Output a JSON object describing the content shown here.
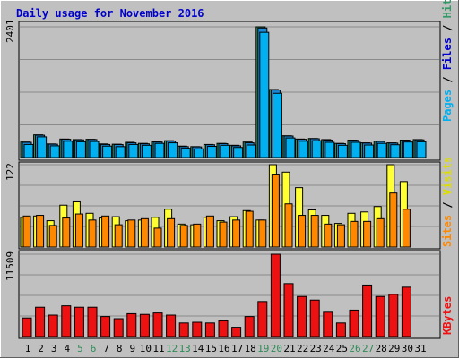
{
  "title": "Daily usage for November 2016",
  "colors": {
    "title": "#0000cc",
    "pages": "#00b0f0",
    "files": "#1a8ad8",
    "hits": "#339966",
    "visits": "#ffff33",
    "sites": "#ff8800",
    "kbytes": "#ee1111",
    "weekend": "#2e8b57",
    "weekday": "#000000",
    "grid": "#8a8a8a",
    "panel_bg": "#c0c0c0"
  },
  "side_labels": {
    "top": [
      {
        "text": "Pages",
        "color": "#00b0f0"
      },
      {
        "text": " / ",
        "color": "#000000"
      },
      {
        "text": "Files",
        "color": "#0000cc"
      },
      {
        "text": " / ",
        "color": "#000000"
      },
      {
        "text": "Hits",
        "color": "#339966"
      }
    ],
    "middle": [
      {
        "text": "Sites",
        "color": "#ff8800"
      },
      {
        "text": " / ",
        "color": "#000000"
      },
      {
        "text": "Visits",
        "color": "#dddd00"
      }
    ],
    "bottom": [
      {
        "text": "KBytes",
        "color": "#ee1111"
      }
    ]
  },
  "chart_data": [
    {
      "type": "bar",
      "panel": "hits-files-pages",
      "ymax_label": "2401",
      "ylim": [
        0,
        2401
      ],
      "categories": [
        "1",
        "2",
        "3",
        "4",
        "5",
        "6",
        "7",
        "8",
        "9",
        "10",
        "11",
        "12",
        "13",
        "14",
        "15",
        "16",
        "17",
        "18",
        "19",
        "20",
        "21",
        "22",
        "23",
        "24",
        "25",
        "26",
        "27",
        "28",
        "29",
        "30",
        "31"
      ],
      "weekend_days": [
        "5",
        "6",
        "12",
        "13",
        "19",
        "20",
        "26",
        "27"
      ],
      "series": [
        {
          "name": "Hits",
          "values": [
            285,
            417,
            250,
            340,
            330,
            335,
            250,
            245,
            280,
            260,
            290,
            310,
            210,
            200,
            240,
            260,
            225,
            285,
            2401,
            1250,
            400,
            340,
            350,
            330,
            260,
            320,
            270,
            300,
            270,
            320,
            330
          ]
        },
        {
          "name": "Files",
          "values": [
            280,
            410,
            245,
            335,
            325,
            330,
            240,
            238,
            270,
            252,
            285,
            300,
            200,
            195,
            235,
            255,
            215,
            270,
            2380,
            1240,
            395,
            335,
            345,
            320,
            255,
            315,
            265,
            295,
            265,
            315,
            325
          ]
        },
        {
          "name": "Pages",
          "values": [
            240,
            380,
            215,
            300,
            290,
            295,
            210,
            200,
            240,
            225,
            260,
            270,
            170,
            160,
            205,
            225,
            185,
            230,
            2300,
            1180,
            360,
            300,
            310,
            280,
            225,
            280,
            230,
            260,
            235,
            285,
            290
          ]
        }
      ]
    },
    {
      "type": "bar",
      "panel": "visits-sites",
      "ymax_label": "122",
      "ylim": [
        0,
        122
      ],
      "categories": [
        "1",
        "2",
        "3",
        "4",
        "5",
        "6",
        "7",
        "8",
        "9",
        "10",
        "11",
        "12",
        "13",
        "14",
        "15",
        "16",
        "17",
        "18",
        "19",
        "20",
        "21",
        "22",
        "23",
        "24",
        "25",
        "26",
        "27",
        "28",
        "29",
        "30",
        "31"
      ],
      "weekend_days": [
        "5",
        "6",
        "12",
        "13",
        "19",
        "20",
        "26",
        "27"
      ],
      "series": [
        {
          "name": "Visits",
          "values": [
            44,
            46,
            39,
            62,
            67,
            50,
            43,
            45,
            39,
            40,
            44,
            56,
            34,
            33,
            44,
            39,
            45,
            54,
            40,
            122,
            111,
            88,
            55,
            47,
            35,
            50,
            52,
            60,
            122,
            97,
            0
          ]
        },
        {
          "name": "Sites",
          "values": [
            46,
            47,
            32,
            43,
            49,
            40,
            46,
            33,
            40,
            42,
            28,
            42,
            32,
            34,
            46,
            37,
            40,
            53,
            40,
            108,
            64,
            47,
            47,
            34,
            33,
            38,
            38,
            42,
            80,
            56,
            0
          ]
        }
      ]
    },
    {
      "type": "bar",
      "panel": "kbytes",
      "ymax_label": "11509",
      "ylim": [
        0,
        11509
      ],
      "categories": [
        "1",
        "2",
        "3",
        "4",
        "5",
        "6",
        "7",
        "8",
        "9",
        "10",
        "11",
        "12",
        "13",
        "14",
        "15",
        "16",
        "17",
        "18",
        "19",
        "20",
        "21",
        "22",
        "23",
        "24",
        "25",
        "26",
        "27",
        "28",
        "29",
        "30",
        "31"
      ],
      "weekend_days": [
        "5",
        "6",
        "12",
        "13",
        "19",
        "20",
        "26",
        "27"
      ],
      "series": [
        {
          "name": "KBytes",
          "values": [
            2600,
            4100,
            3000,
            4300,
            4100,
            4100,
            2800,
            2500,
            3200,
            3100,
            3300,
            3000,
            1900,
            2000,
            1900,
            2200,
            1300,
            2800,
            4900,
            11509,
            7400,
            5600,
            5100,
            3400,
            1900,
            3700,
            7200,
            5600,
            5900,
            6900,
            0
          ]
        }
      ]
    }
  ]
}
